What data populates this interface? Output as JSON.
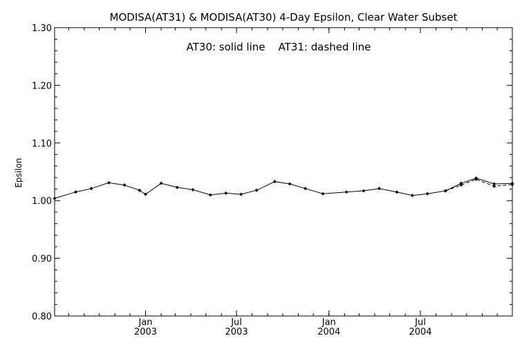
{
  "chart_data": {
    "type": "line",
    "title": "MODISA(AT31) & MODISA(AT30) 4-Day Epsilon, Clear Water Subset",
    "annotation": "AT30: solid line    AT31: dashed line",
    "xlabel": "",
    "ylabel": "Epsilon",
    "ylim": [
      0.8,
      1.3
    ],
    "yticks": [
      "0.80",
      "0.90",
      "1.00",
      "1.10",
      "1.20",
      "1.30"
    ],
    "xlim": [
      "2002-07-04",
      "2004-12-31"
    ],
    "xticks": [
      {
        "date": "2003-01-01",
        "month": "Jan",
        "year": "2003"
      },
      {
        "date": "2003-07-01",
        "month": "Jul",
        "year": "2003"
      },
      {
        "date": "2004-01-01",
        "month": "Jan",
        "year": "2004"
      },
      {
        "date": "2004-07-01",
        "month": "Jul",
        "year": "2004"
      }
    ],
    "grid": false,
    "legend": "none",
    "series": [
      {
        "name": "AT30",
        "style": "solid",
        "points": [
          {
            "x": "2002-07-04",
            "y": 1.004
          },
          {
            "x": "2002-08-15",
            "y": 1.015
          },
          {
            "x": "2002-09-15",
            "y": 1.021
          },
          {
            "x": "2002-10-20",
            "y": 1.031
          },
          {
            "x": "2002-11-20",
            "y": 1.027
          },
          {
            "x": "2002-12-20",
            "y": 1.018
          },
          {
            "x": "2003-01-01",
            "y": 1.011
          },
          {
            "x": "2003-02-01",
            "y": 1.03
          },
          {
            "x": "2003-03-05",
            "y": 1.023
          },
          {
            "x": "2003-04-05",
            "y": 1.019
          },
          {
            "x": "2003-05-10",
            "y": 1.01
          },
          {
            "x": "2003-06-10",
            "y": 1.013
          },
          {
            "x": "2003-07-10",
            "y": 1.011
          },
          {
            "x": "2003-08-10",
            "y": 1.018
          },
          {
            "x": "2003-09-15",
            "y": 1.033
          },
          {
            "x": "2003-10-15",
            "y": 1.029
          },
          {
            "x": "2003-11-15",
            "y": 1.021
          },
          {
            "x": "2003-12-20",
            "y": 1.012
          },
          {
            "x": "2004-02-05",
            "y": 1.015
          },
          {
            "x": "2004-03-10",
            "y": 1.017
          },
          {
            "x": "2004-04-10",
            "y": 1.021
          },
          {
            "x": "2004-05-15",
            "y": 1.015
          },
          {
            "x": "2004-06-15",
            "y": 1.009
          },
          {
            "x": "2004-07-15",
            "y": 1.012
          },
          {
            "x": "2004-08-20",
            "y": 1.017
          },
          {
            "x": "2004-09-20",
            "y": 1.03
          },
          {
            "x": "2004-10-20",
            "y": 1.039
          },
          {
            "x": "2004-11-25",
            "y": 1.029
          },
          {
            "x": "2004-12-31",
            "y": 1.03
          }
        ]
      },
      {
        "name": "AT31",
        "style": "dashed",
        "points": [
          {
            "x": "2004-08-20",
            "y": 1.017
          },
          {
            "x": "2004-09-20",
            "y": 1.027
          },
          {
            "x": "2004-10-20",
            "y": 1.037
          },
          {
            "x": "2004-11-25",
            "y": 1.025
          },
          {
            "x": "2004-12-31",
            "y": 1.028
          }
        ]
      }
    ]
  }
}
